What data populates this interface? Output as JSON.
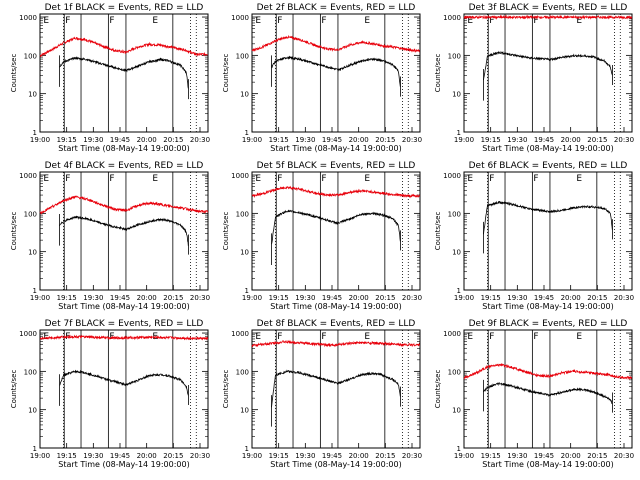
{
  "chart_data": [
    {
      "type": "line",
      "title": "Det 1f BLACK = Events, RED = LLD",
      "xlabel": "Start Time (08-May-14 19:00:00)",
      "ylabel": "Counts/sec",
      "x_ticks": [
        "19:00",
        "19:15",
        "19:30",
        "19:45",
        "20:00",
        "20:15",
        "20:30"
      ],
      "y_ticks": [
        "1",
        "10",
        "100",
        "1000"
      ],
      "ylim": [
        1,
        1200
      ],
      "yscale": "log",
      "xlim_min": [
        0,
        40
      ],
      "events": [
        [
          5,
          50
        ],
        [
          6,
          68
        ],
        [
          9,
          85
        ],
        [
          12,
          78
        ],
        [
          17,
          55
        ],
        [
          22,
          40
        ],
        [
          25,
          52
        ],
        [
          28,
          68
        ],
        [
          31,
          78
        ],
        [
          33,
          72
        ],
        [
          36,
          55
        ],
        [
          37.5,
          35
        ],
        [
          38,
          12
        ]
      ],
      "lld": [
        [
          0,
          98
        ],
        [
          3,
          140
        ],
        [
          6,
          210
        ],
        [
          9,
          285
        ],
        [
          12,
          250
        ],
        [
          16,
          175
        ],
        [
          19,
          135
        ],
        [
          22,
          120
        ],
        [
          25,
          165
        ],
        [
          28,
          195
        ],
        [
          31,
          185
        ],
        [
          34,
          160
        ],
        [
          37,
          140
        ],
        [
          40,
          105
        ],
        [
          43,
          108
        ]
      ],
      "region_markers": [
        "E",
        "F",
        "F",
        "E"
      ]
    },
    {
      "type": "line",
      "title": "Det 2f BLACK = Events, RED = LLD",
      "xlabel": "Start Time (08-May-14 19:00:00)",
      "ylabel": "Counts/sec",
      "x_ticks": [
        "19:00",
        "19:15",
        "19:30",
        "19:45",
        "20:00",
        "20:15",
        "20:30"
      ],
      "y_ticks": [
        "1",
        "10",
        "100",
        "1000"
      ],
      "ylim": [
        1,
        1200
      ],
      "yscale": "log",
      "events": [
        [
          5,
          50
        ],
        [
          6,
          70
        ],
        [
          9,
          88
        ],
        [
          12,
          80
        ],
        [
          17,
          58
        ],
        [
          22,
          42
        ],
        [
          25,
          55
        ],
        [
          28,
          72
        ],
        [
          31,
          80
        ],
        [
          33,
          74
        ],
        [
          36,
          58
        ],
        [
          37.5,
          38
        ],
        [
          38,
          14
        ]
      ],
      "lld": [
        [
          0,
          135
        ],
        [
          3,
          170
        ],
        [
          6,
          240
        ],
        [
          9,
          300
        ],
        [
          12,
          265
        ],
        [
          16,
          185
        ],
        [
          19,
          150
        ],
        [
          22,
          140
        ],
        [
          25,
          185
        ],
        [
          28,
          220
        ],
        [
          31,
          200
        ],
        [
          34,
          175
        ],
        [
          37,
          160
        ],
        [
          40,
          140
        ],
        [
          43,
          130
        ]
      ],
      "region_markers": [
        "E",
        "F",
        "F",
        "E"
      ]
    },
    {
      "type": "line",
      "title": "Det 3f BLACK = Events, RED = LLD",
      "xlabel": "Start Time (08-May-14 19:00:00)",
      "ylabel": "Counts/sec",
      "x_ticks": [
        "19:00",
        "19:15",
        "19:30",
        "19:45",
        "20:00",
        "20:15",
        "20:30"
      ],
      "y_ticks": [
        "1",
        "10",
        "100",
        "1000"
      ],
      "ylim": [
        1,
        1200
      ],
      "yscale": "log",
      "events": [
        [
          5,
          22
        ],
        [
          6,
          95
        ],
        [
          9,
          120
        ],
        [
          12,
          105
        ],
        [
          17,
          85
        ],
        [
          22,
          78
        ],
        [
          25,
          88
        ],
        [
          28,
          98
        ],
        [
          31,
          96
        ],
        [
          33,
          92
        ],
        [
          36,
          70
        ],
        [
          37.5,
          50
        ],
        [
          38,
          28
        ]
      ],
      "lld": [
        [
          0,
          980
        ],
        [
          5,
          990
        ],
        [
          10,
          985
        ],
        [
          15,
          990
        ],
        [
          20,
          985
        ],
        [
          25,
          990
        ],
        [
          30,
          985
        ],
        [
          35,
          990
        ],
        [
          40,
          985
        ],
        [
          43,
          985
        ]
      ],
      "region_markers": [
        "E",
        "F",
        "F",
        "E"
      ]
    },
    {
      "type": "line",
      "title": "Det 4f BLACK = Events, RED = LLD",
      "xlabel": "Start Time (08-May-14 19:00:00)",
      "ylabel": "Counts/sec",
      "x_ticks": [
        "19:00",
        "19:15",
        "19:30",
        "19:45",
        "20:00",
        "20:15",
        "20:30"
      ],
      "y_ticks": [
        "1",
        "10",
        "100",
        "1000"
      ],
      "ylim": [
        1,
        1200
      ],
      "yscale": "log",
      "events": [
        [
          5,
          48
        ],
        [
          6,
          62
        ],
        [
          9,
          80
        ],
        [
          12,
          72
        ],
        [
          17,
          50
        ],
        [
          22,
          38
        ],
        [
          25,
          50
        ],
        [
          28,
          62
        ],
        [
          31,
          70
        ],
        [
          33,
          64
        ],
        [
          36,
          50
        ],
        [
          37.5,
          32
        ],
        [
          38,
          14
        ]
      ],
      "lld": [
        [
          0,
          100
        ],
        [
          3,
          145
        ],
        [
          6,
          215
        ],
        [
          9,
          270
        ],
        [
          12,
          235
        ],
        [
          16,
          165
        ],
        [
          19,
          130
        ],
        [
          22,
          118
        ],
        [
          25,
          160
        ],
        [
          28,
          185
        ],
        [
          31,
          170
        ],
        [
          34,
          150
        ],
        [
          37,
          135
        ],
        [
          40,
          115
        ],
        [
          43,
          110
        ]
      ],
      "region_markers": [
        "E",
        "F",
        "F",
        "E"
      ]
    },
    {
      "type": "line",
      "title": "Det 5f BLACK = Events, RED = LLD",
      "xlabel": "Start Time (08-May-14 19:00:00)",
      "ylabel": "Counts/sec",
      "x_ticks": [
        "19:00",
        "19:15",
        "19:30",
        "19:45",
        "20:00",
        "20:15",
        "20:30"
      ],
      "y_ticks": [
        "1",
        "10",
        "100",
        "1000"
      ],
      "ylim": [
        1,
        1200
      ],
      "yscale": "log",
      "events": [
        [
          5,
          15
        ],
        [
          6,
          82
        ],
        [
          9,
          115
        ],
        [
          12,
          105
        ],
        [
          17,
          78
        ],
        [
          22,
          55
        ],
        [
          25,
          72
        ],
        [
          28,
          95
        ],
        [
          31,
          100
        ],
        [
          33,
          92
        ],
        [
          36,
          75
        ],
        [
          37.5,
          48
        ],
        [
          38,
          18
        ]
      ],
      "lld": [
        [
          0,
          285
        ],
        [
          3,
          330
        ],
        [
          6,
          420
        ],
        [
          9,
          480
        ],
        [
          12,
          430
        ],
        [
          16,
          340
        ],
        [
          19,
          305
        ],
        [
          22,
          300
        ],
        [
          25,
          355
        ],
        [
          28,
          390
        ],
        [
          31,
          360
        ],
        [
          34,
          330
        ],
        [
          37,
          305
        ],
        [
          40,
          285
        ],
        [
          43,
          285
        ]
      ],
      "region_markers": [
        "E",
        "F",
        "F",
        "E"
      ]
    },
    {
      "type": "line",
      "title": "Det 6f BLACK = Events, RED = LLD",
      "xlabel": "Start Time (08-May-14 19:00:00)",
      "ylabel": "Counts/sec",
      "x_ticks": [
        "19:00",
        "19:15",
        "19:30",
        "19:45",
        "20:00",
        "20:15",
        "20:30"
      ],
      "y_ticks": [
        "1",
        "10",
        "100",
        "1000"
      ],
      "ylim": [
        1,
        1200
      ],
      "yscale": "log",
      "events": [
        [
          5,
          30
        ],
        [
          6,
          160
        ],
        [
          9,
          195
        ],
        [
          12,
          175
        ],
        [
          17,
          130
        ],
        [
          22,
          110
        ],
        [
          25,
          120
        ],
        [
          28,
          140
        ],
        [
          31,
          150
        ],
        [
          33,
          148
        ],
        [
          36,
          132
        ],
        [
          37.5,
          100
        ],
        [
          38,
          35
        ]
      ],
      "lld": [],
      "region_markers": [
        "E",
        "F",
        "F",
        "E"
      ]
    },
    {
      "type": "line",
      "title": "Det 7f BLACK = Events, RED = LLD",
      "xlabel": "Start Time (08-May-14 19:00:00)",
      "ylabel": "Counts/sec",
      "x_ticks": [
        "19:00",
        "19:15",
        "19:30",
        "19:45",
        "20:00",
        "20:15",
        "20:30"
      ],
      "y_ticks": [
        "1",
        "10",
        "100",
        "1000"
      ],
      "ylim": [
        1,
        1200
      ],
      "yscale": "log",
      "events": [
        [
          5,
          42
        ],
        [
          6,
          78
        ],
        [
          9,
          100
        ],
        [
          12,
          90
        ],
        [
          17,
          62
        ],
        [
          22,
          45
        ],
        [
          25,
          58
        ],
        [
          28,
          78
        ],
        [
          31,
          82
        ],
        [
          33,
          76
        ],
        [
          36,
          60
        ],
        [
          37.5,
          40
        ],
        [
          38,
          22
        ]
      ],
      "lld": [
        [
          0,
          720
        ],
        [
          4,
          760
        ],
        [
          8,
          800
        ],
        [
          12,
          790
        ],
        [
          16,
          760
        ],
        [
          20,
          740
        ],
        [
          24,
          760
        ],
        [
          28,
          780
        ],
        [
          32,
          760
        ],
        [
          36,
          740
        ],
        [
          40,
          730
        ],
        [
          43,
          720
        ]
      ],
      "region_markers": [
        "E",
        "F",
        "F",
        "E"
      ]
    },
    {
      "type": "line",
      "title": "Det 8f BLACK = Events, RED = LLD",
      "xlabel": "Start Time (08-May-14 19:00:00)",
      "ylabel": "Counts/sec",
      "x_ticks": [
        "19:00",
        "19:15",
        "19:30",
        "19:45",
        "20:00",
        "20:15",
        "20:30"
      ],
      "y_ticks": [
        "1",
        "10",
        "100",
        "1000"
      ],
      "ylim": [
        1,
        1200
      ],
      "yscale": "log",
      "events": [
        [
          5,
          12
        ],
        [
          6,
          80
        ],
        [
          9,
          100
        ],
        [
          12,
          92
        ],
        [
          17,
          68
        ],
        [
          22,
          48
        ],
        [
          25,
          62
        ],
        [
          28,
          82
        ],
        [
          31,
          88
        ],
        [
          33,
          82
        ],
        [
          36,
          62
        ],
        [
          37.5,
          45
        ],
        [
          38,
          20
        ]
      ],
      "lld": [
        [
          0,
          470
        ],
        [
          4,
          520
        ],
        [
          8,
          590
        ],
        [
          12,
          560
        ],
        [
          16,
          520
        ],
        [
          20,
          480
        ],
        [
          24,
          520
        ],
        [
          28,
          560
        ],
        [
          32,
          540
        ],
        [
          36,
          510
        ],
        [
          40,
          495
        ],
        [
          43,
          490
        ]
      ],
      "region_markers": [
        "E",
        "F",
        "F",
        "E"
      ]
    },
    {
      "type": "line",
      "title": "Det 9f BLACK = Events, RED = LLD",
      "xlabel": "Start Time (08-May-14 19:00:00)",
      "ylabel": "Counts/sec",
      "x_ticks": [
        "19:00",
        "19:15",
        "19:30",
        "19:45",
        "20:00",
        "20:15",
        "20:30"
      ],
      "y_ticks": [
        "1",
        "10",
        "100",
        "1000"
      ],
      "ylim": [
        1,
        1200
      ],
      "yscale": "log",
      "events": [
        [
          5,
          30
        ],
        [
          6,
          38
        ],
        [
          9,
          48
        ],
        [
          12,
          42
        ],
        [
          17,
          30
        ],
        [
          22,
          24
        ],
        [
          25,
          28
        ],
        [
          28,
          34
        ],
        [
          31,
          33
        ],
        [
          33,
          29
        ],
        [
          36,
          22
        ],
        [
          37.5,
          18
        ],
        [
          38,
          14
        ]
      ],
      "lld": [
        [
          0,
          68
        ],
        [
          3,
          90
        ],
        [
          6,
          130
        ],
        [
          9,
          150
        ],
        [
          12,
          130
        ],
        [
          16,
          95
        ],
        [
          19,
          78
        ],
        [
          22,
          75
        ],
        [
          25,
          92
        ],
        [
          28,
          100
        ],
        [
          31,
          95
        ],
        [
          34,
          88
        ],
        [
          37,
          80
        ],
        [
          40,
          70
        ],
        [
          43,
          68
        ]
      ],
      "region_markers": [
        "E",
        "F",
        "F",
        "E"
      ]
    }
  ],
  "colors": {
    "events": "#000000",
    "lld": "#e8000b",
    "axes": "#000000"
  }
}
